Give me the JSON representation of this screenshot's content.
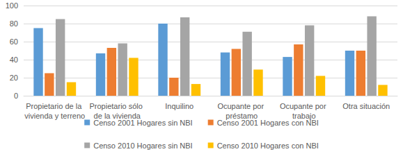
{
  "chart_data": {
    "type": "bar",
    "categories": [
      "Propietario de la vivienda y terreno",
      "Propietario sólo de la vivienda",
      "Inquilino",
      "Ocupante por préstamo",
      "Ocupante por trabajo",
      "Otra situación"
    ],
    "series": [
      {
        "name": "Censo 2001 Hogares sin NBI",
        "color": "#5B9BD5",
        "values": [
          75,
          47,
          80,
          48,
          43,
          50
        ]
      },
      {
        "name": "Censo 2001 Hogares con NBI",
        "color": "#ED7D31",
        "values": [
          25,
          53,
          20,
          52,
          57,
          50
        ]
      },
      {
        "name": "Censo 2010 Hogares sin NBI",
        "color": "#A5A5A5",
        "values": [
          85,
          58,
          87,
          71,
          78,
          88
        ]
      },
      {
        "name": "Censo 2010 Hogares con NBI",
        "color": "#FFC000",
        "values": [
          15,
          42,
          13,
          29,
          22,
          12
        ]
      }
    ],
    "ylim": [
      0,
      100
    ],
    "yticks": [
      0,
      20,
      40,
      60,
      80,
      100
    ],
    "grid": true,
    "legend": "bottom"
  }
}
